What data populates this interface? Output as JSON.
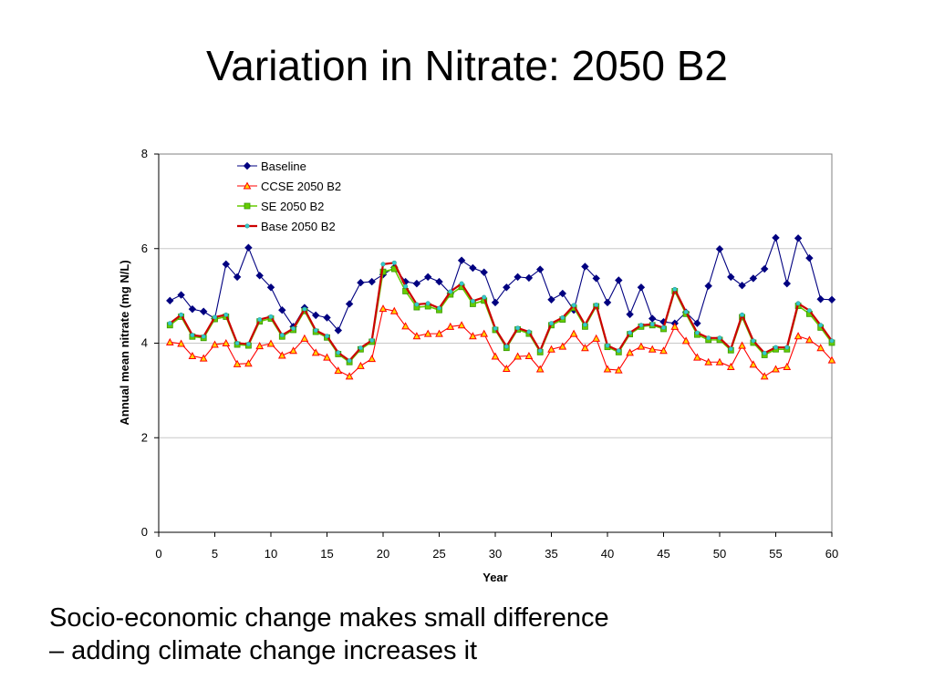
{
  "slide": {
    "title": "Variation in Nitrate: 2050 B2",
    "caption_lines": [
      "Socio-economic change makes small difference",
      "– adding climate change increases it"
    ]
  },
  "chart_data": {
    "type": "line",
    "title": "",
    "xlabel": "Year",
    "ylabel": "Annual mean nitrate (mg N/L)",
    "xlim": [
      0,
      60
    ],
    "ylim": [
      0,
      8
    ],
    "xticks": [
      0,
      5,
      10,
      15,
      20,
      25,
      30,
      35,
      40,
      45,
      50,
      55,
      60
    ],
    "yticks": [
      0,
      2,
      4,
      6,
      8
    ],
    "grid": "horizontal",
    "legend_position": "top-left",
    "x": [
      1,
      2,
      3,
      4,
      5,
      6,
      7,
      8,
      9,
      10,
      11,
      12,
      13,
      14,
      15,
      16,
      17,
      18,
      19,
      20,
      21,
      22,
      23,
      24,
      25,
      26,
      27,
      28,
      29,
      30,
      31,
      32,
      33,
      34,
      35,
      36,
      37,
      38,
      39,
      40,
      41,
      42,
      43,
      44,
      45,
      46,
      47,
      48,
      49,
      50,
      51,
      52,
      53,
      54,
      55,
      56,
      57,
      58,
      59,
      60
    ],
    "series": [
      {
        "name": "Baseline",
        "color": "#000080",
        "marker": "diamond",
        "values": [
          4.9,
          5.02,
          4.72,
          4.67,
          4.52,
          5.67,
          5.4,
          6.02,
          5.43,
          5.18,
          4.7,
          4.35,
          4.75,
          4.59,
          4.54,
          4.27,
          4.83,
          5.28,
          5.3,
          5.45,
          5.6,
          5.3,
          5.26,
          5.4,
          5.3,
          5.05,
          5.75,
          5.59,
          5.5,
          4.86,
          5.18,
          5.4,
          5.38,
          5.56,
          4.92,
          5.05,
          4.7,
          5.62,
          5.37,
          4.86,
          5.33,
          4.61,
          5.18,
          4.52,
          4.45,
          4.42,
          4.65,
          4.42,
          5.21,
          5.99,
          5.4,
          5.22,
          5.37,
          5.57,
          6.23,
          5.26,
          6.22,
          5.8,
          4.93,
          4.92
        ]
      },
      {
        "name": "CCSE 2050 B2",
        "color": "#FF0000",
        "marker": "triangle",
        "values": [
          4.02,
          3.99,
          3.73,
          3.68,
          3.97,
          4.0,
          3.56,
          3.57,
          3.94,
          3.99,
          3.74,
          3.84,
          4.1,
          3.8,
          3.7,
          3.42,
          3.3,
          3.52,
          3.67,
          4.73,
          4.68,
          4.36,
          4.15,
          4.2,
          4.2,
          4.35,
          4.38,
          4.15,
          4.2,
          3.72,
          3.46,
          3.72,
          3.73,
          3.45,
          3.87,
          3.93,
          4.2,
          3.9,
          4.1,
          3.45,
          3.43,
          3.8,
          3.93,
          3.87,
          3.84,
          4.35,
          4.05,
          3.7,
          3.6,
          3.6,
          3.5,
          3.95,
          3.55,
          3.3,
          3.45,
          3.5,
          4.15,
          4.07,
          3.9,
          3.64
        ]
      },
      {
        "name": "SE 2050 B2",
        "color": "#66CC00",
        "marker": "square",
        "values": [
          4.38,
          4.56,
          4.14,
          4.11,
          4.51,
          4.56,
          3.97,
          3.95,
          4.46,
          4.52,
          4.14,
          4.28,
          4.68,
          4.24,
          4.12,
          3.77,
          3.6,
          3.87,
          4.03,
          5.51,
          5.57,
          5.1,
          4.76,
          4.78,
          4.7,
          5.03,
          5.19,
          4.83,
          4.9,
          4.28,
          3.9,
          4.29,
          4.2,
          3.81,
          4.38,
          4.5,
          4.75,
          4.35,
          4.78,
          3.92,
          3.81,
          4.19,
          4.35,
          4.38,
          4.3,
          5.1,
          4.62,
          4.18,
          4.07,
          4.07,
          3.85,
          4.55,
          4.01,
          3.75,
          3.87,
          3.87,
          4.79,
          4.62,
          4.33,
          4.01
        ]
      },
      {
        "name": "Base 2050 B2",
        "color": "#CC0000",
        "marker": "dot",
        "values": [
          4.42,
          4.6,
          4.17,
          4.14,
          4.55,
          4.6,
          4.0,
          3.98,
          4.5,
          4.56,
          4.17,
          4.31,
          4.72,
          4.27,
          4.15,
          3.8,
          3.63,
          3.9,
          4.06,
          5.67,
          5.7,
          5.2,
          4.82,
          4.84,
          4.74,
          5.09,
          5.26,
          4.89,
          4.97,
          4.31,
          3.93,
          4.32,
          4.24,
          3.84,
          4.42,
          4.54,
          4.8,
          4.39,
          4.81,
          3.95,
          3.84,
          4.22,
          4.38,
          4.4,
          4.33,
          5.14,
          4.66,
          4.22,
          4.11,
          4.11,
          3.88,
          4.6,
          4.05,
          3.79,
          3.91,
          3.91,
          4.84,
          4.69,
          4.38,
          4.05
        ]
      }
    ]
  }
}
